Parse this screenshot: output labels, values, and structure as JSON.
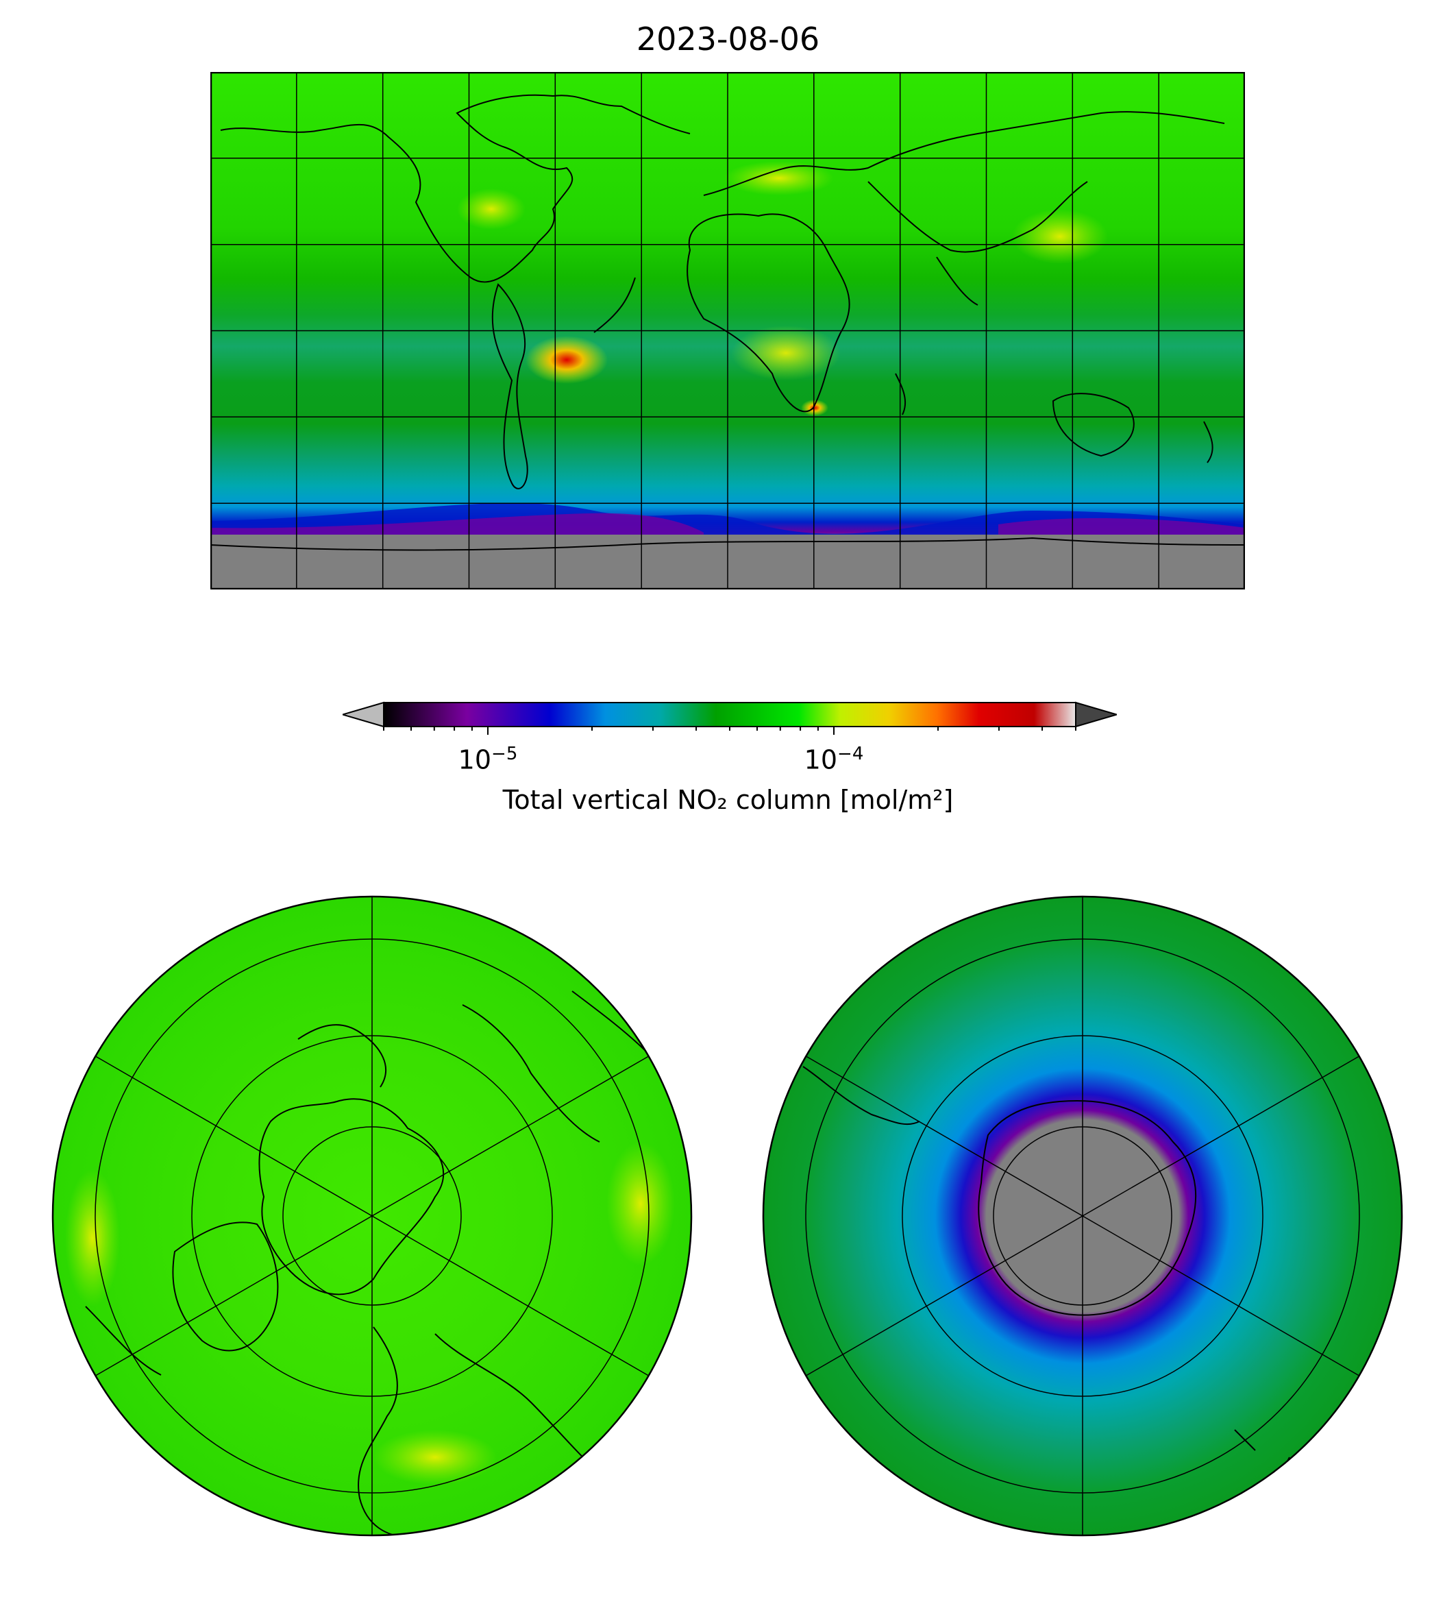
{
  "title": "2023-08-06",
  "colorbar": {
    "label": "Total vertical NO₂ column [mol/m²]",
    "scale": "log",
    "range": [
      "5e-6",
      "5e-4"
    ],
    "extend": "both",
    "ticks": [
      {
        "base": "10",
        "exp": "−5",
        "value": 1e-05
      },
      {
        "base": "10",
        "exp": "−4",
        "value": 0.0001
      }
    ],
    "colormap": [
      "#000000",
      "#7a00a0",
      "#0000d0",
      "#0090e0",
      "#00a8a8",
      "#00a000",
      "#00e600",
      "#c0f000",
      "#f0d000",
      "#ff7000",
      "#e00000",
      "#c00000",
      "#e8e8e8"
    ],
    "under_color": "#bbbbbb",
    "over_color": "#444444"
  },
  "maps": {
    "world": {
      "projection": "PlateCarree",
      "gridlines": "on",
      "no_data_color": "#808080"
    },
    "north_polar": {
      "projection": "NorthPolarStereo",
      "gridlines": "on"
    },
    "south_polar": {
      "projection": "SouthPolarStereo",
      "gridlines": "on",
      "no_data_color": "#808080"
    }
  }
}
